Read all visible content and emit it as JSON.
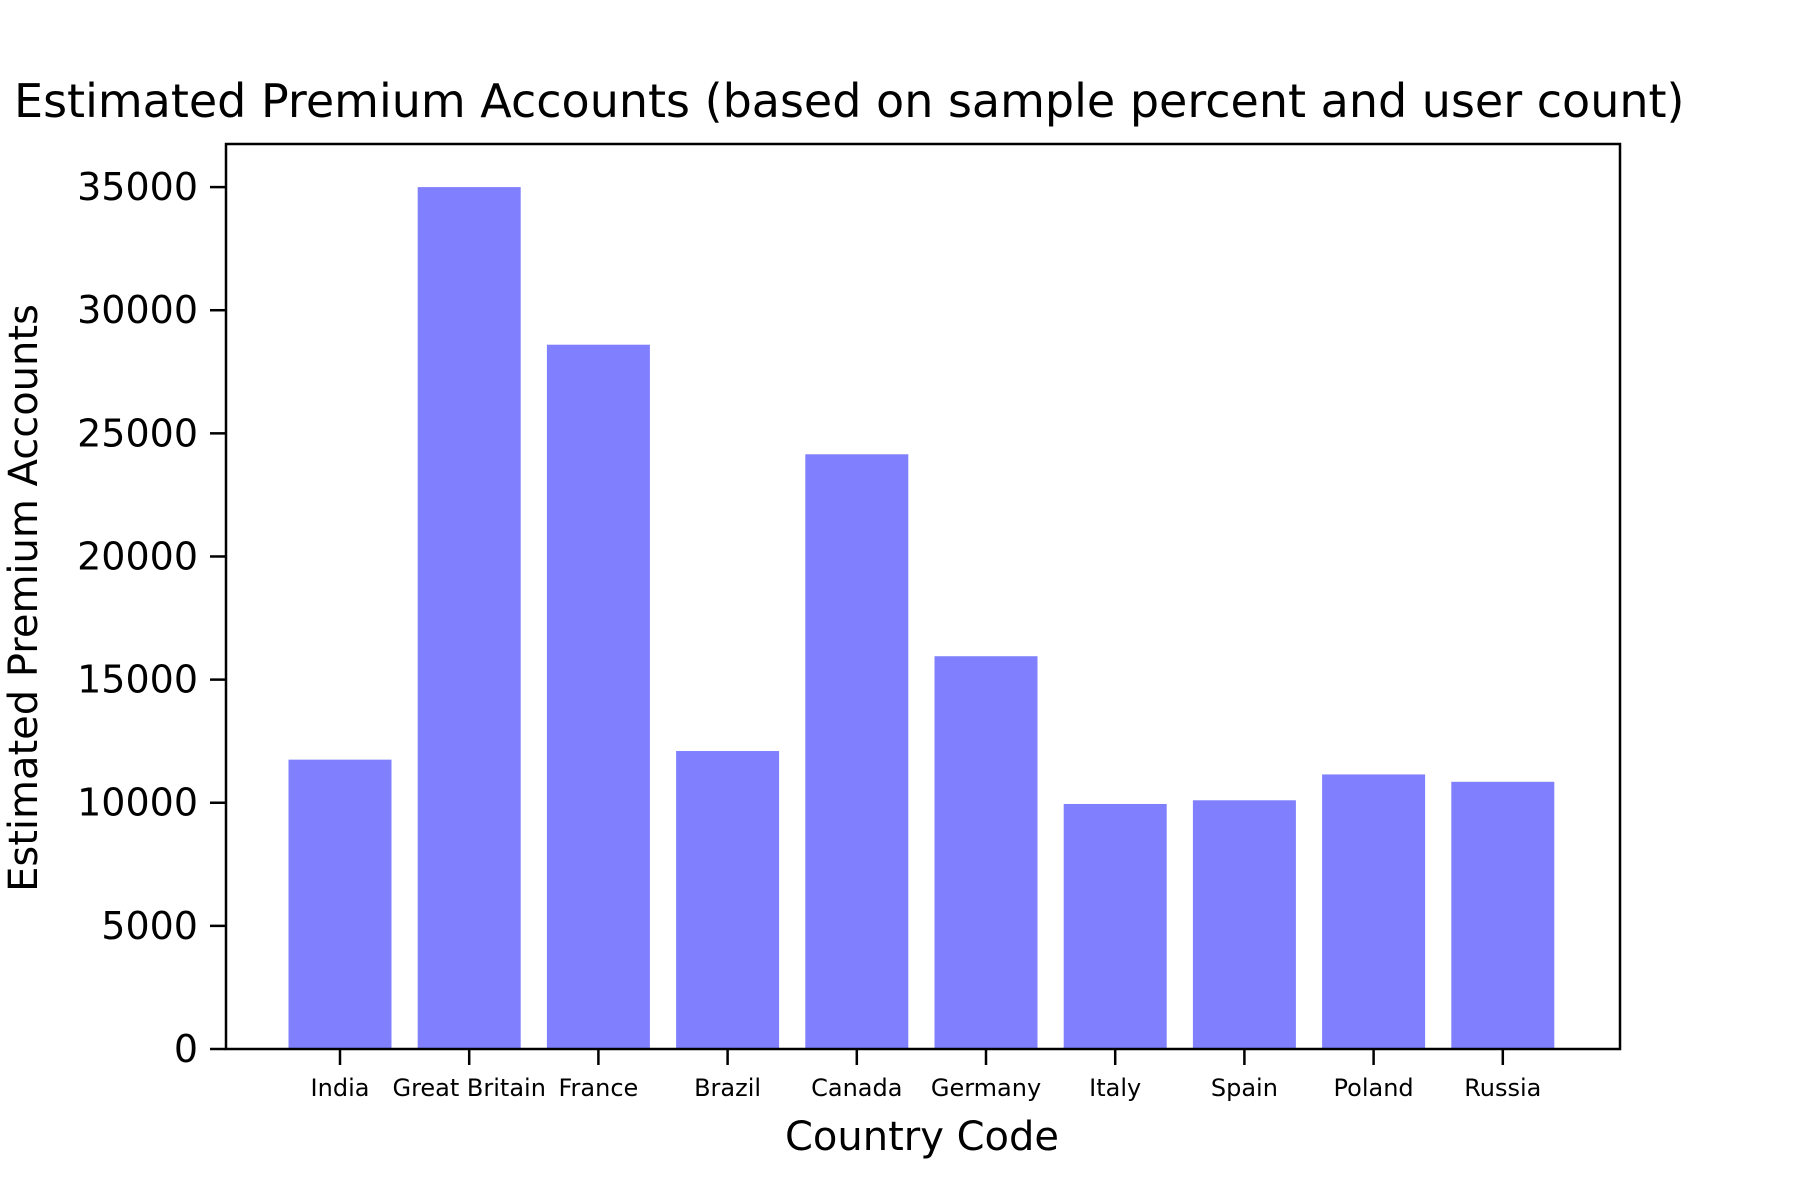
{
  "chart_data": {
    "type": "bar",
    "title": "Estimated Premium Accounts (based on sample percent and user count)",
    "xlabel": "Country Code",
    "ylabel": "Estimated Premium Accounts",
    "categories": [
      "India",
      "Great Britain",
      "France",
      "Brazil",
      "Canada",
      "Germany",
      "Italy",
      "Spain",
      "Poland",
      "Russia"
    ],
    "values": [
      11750,
      35000,
      28600,
      12100,
      24150,
      15950,
      9950,
      10100,
      11150,
      10850
    ],
    "ylim": [
      0,
      36750
    ],
    "yticks": [
      0,
      5000,
      10000,
      15000,
      20000,
      25000,
      30000,
      35000
    ],
    "bar_color": "#8080ff",
    "grid": false,
    "legend": "none"
  }
}
